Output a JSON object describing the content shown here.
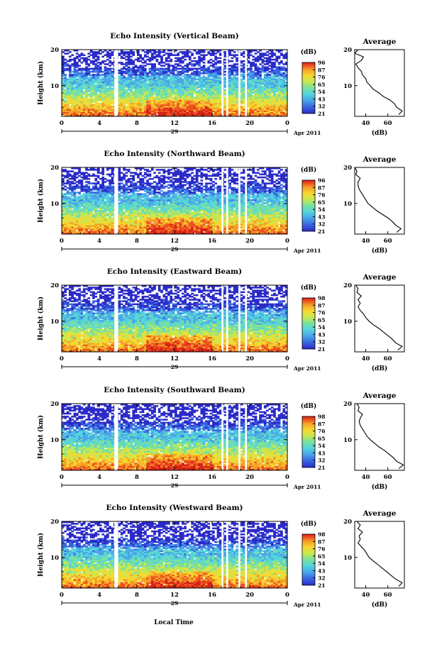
{
  "chart_data": [
    {
      "type": "heatmap",
      "title": "Echo Intensity (Vertical Beam)",
      "ylabel": "Height (km)",
      "x_ticks": [
        "0",
        "4",
        "8",
        "12",
        "16",
        "20",
        "0"
      ],
      "y_ticks": [
        "20",
        "10"
      ],
      "date_label": "29",
      "month_label": "Apr 2011",
      "colorbar_unit": "(dB)",
      "colorbar_ticks": [
        "96",
        "87",
        "76",
        "65",
        "54",
        "43",
        "32",
        "21"
      ],
      "profile": {
        "title": "Average",
        "x_ticks": [
          "40",
          "60"
        ],
        "y_ticks": [
          "20",
          "10"
        ],
        "xlabel": "(dB)",
        "xlim": [
          30,
          75
        ],
        "ylim": [
          1.5,
          20
        ],
        "heights": [
          2,
          3,
          4,
          5,
          6,
          7,
          8,
          9,
          10,
          11,
          12,
          13,
          14,
          15,
          16,
          17,
          18,
          19,
          20
        ],
        "values": [
          70,
          73,
          68,
          66,
          62,
          56,
          52,
          47,
          44,
          41,
          40,
          37,
          36,
          33,
          31,
          36,
          38,
          30,
          33
        ]
      }
    },
    {
      "type": "heatmap",
      "title": "Echo Intensity (Northward Beam)",
      "ylabel": "Height (km)",
      "x_ticks": [
        "0",
        "4",
        "8",
        "12",
        "16",
        "20",
        "0"
      ],
      "y_ticks": [
        "20",
        "10"
      ],
      "date_label": "29",
      "month_label": "Apr 2011",
      "colorbar_unit": "(dB)",
      "colorbar_ticks": [
        "96",
        "87",
        "76",
        "65",
        "54",
        "43",
        "32",
        "21"
      ],
      "profile": {
        "title": "Average",
        "x_ticks": [
          "40",
          "60"
        ],
        "y_ticks": [
          "20",
          "10"
        ],
        "xlabel": "(dB)",
        "xlim": [
          30,
          75
        ],
        "ylim": [
          1.5,
          20
        ],
        "heights": [
          2,
          3,
          4,
          5,
          6,
          7,
          8,
          9,
          10,
          11,
          12,
          13,
          14,
          15,
          16,
          17,
          18,
          19,
          20
        ],
        "values": [
          68,
          72,
          67,
          64,
          60,
          55,
          50,
          46,
          42,
          40,
          38,
          36,
          34,
          33,
          33,
          35,
          31,
          32,
          30
        ]
      }
    },
    {
      "type": "heatmap",
      "title": "Echo Intensity (Eastward Beam)",
      "ylabel": "Height (km)",
      "x_ticks": [
        "0",
        "4",
        "8",
        "12",
        "16",
        "20",
        "0"
      ],
      "y_ticks": [
        "20",
        "10"
      ],
      "date_label": "29",
      "month_label": "Apr 2011",
      "colorbar_unit": "(dB)",
      "colorbar_ticks": [
        "98",
        "87",
        "76",
        "65",
        "54",
        "43",
        "32",
        "21"
      ],
      "profile": {
        "title": "Average",
        "x_ticks": [
          "40",
          "60"
        ],
        "y_ticks": [
          "20",
          "10"
        ],
        "xlabel": "(dB)",
        "xlim": [
          30,
          75
        ],
        "ylim": [
          1.5,
          20
        ],
        "heights": [
          2,
          3,
          4,
          5,
          6,
          7,
          8,
          9,
          10,
          11,
          12,
          13,
          14,
          15,
          16,
          17,
          18,
          19,
          20
        ],
        "values": [
          69,
          73,
          67,
          64,
          60,
          56,
          52,
          47,
          43,
          40,
          38,
          35,
          33,
          35,
          33,
          36,
          32,
          33,
          31
        ]
      }
    },
    {
      "type": "heatmap",
      "title": "Echo Intensity (Southward Beam)",
      "ylabel": "Height (km)",
      "x_ticks": [
        "0",
        "4",
        "8",
        "12",
        "16",
        "20",
        "0"
      ],
      "y_ticks": [
        "20",
        "10"
      ],
      "date_label": "29",
      "month_label": "Apr 2011",
      "colorbar_unit": "(dB)",
      "colorbar_ticks": [
        "98",
        "87",
        "76",
        "65",
        "54",
        "43",
        "32",
        "21"
      ],
      "profile": {
        "title": "Average",
        "x_ticks": [
          "40",
          "60"
        ],
        "y_ticks": [
          "20",
          "10"
        ],
        "xlabel": "(dB)",
        "xlim": [
          30,
          75
        ],
        "ylim": [
          1.5,
          20
        ],
        "heights": [
          2,
          3,
          4,
          5,
          6,
          7,
          8,
          9,
          10,
          11,
          12,
          13,
          14,
          15,
          16,
          17,
          18,
          19,
          20
        ],
        "values": [
          70,
          74,
          68,
          65,
          61,
          57,
          52,
          48,
          44,
          41,
          39,
          37,
          35,
          34,
          35,
          37,
          33,
          34,
          32
        ]
      }
    },
    {
      "type": "heatmap",
      "title": "Echo Intensity (Westward Beam)",
      "ylabel": "Height (km)",
      "x_ticks": [
        "0",
        "4",
        "8",
        "12",
        "16",
        "20",
        "0"
      ],
      "y_ticks": [
        "20",
        "10"
      ],
      "date_label": "29",
      "month_label": "Apr 2011",
      "colorbar_unit": "(dB)",
      "colorbar_ticks": [
        "98",
        "87",
        "76",
        "65",
        "54",
        "43",
        "32",
        "21"
      ],
      "profile": {
        "title": "Average",
        "x_ticks": [
          "40",
          "60"
        ],
        "y_ticks": [
          "20",
          "10"
        ],
        "xlabel": "(dB)",
        "xlim": [
          30,
          75
        ],
        "ylim": [
          1.5,
          20
        ],
        "heights": [
          2,
          3,
          4,
          5,
          6,
          7,
          8,
          9,
          10,
          11,
          12,
          13,
          14,
          15,
          16,
          17,
          18,
          19,
          20
        ],
        "values": [
          70,
          73,
          67,
          63,
          59,
          55,
          51,
          47,
          43,
          41,
          39,
          36,
          33,
          35,
          34,
          37,
          33,
          35,
          32
        ]
      }
    }
  ],
  "xlabel": "Local Time",
  "colorscale": [
    "#2b2bc8",
    "#3a66e0",
    "#4aa6e8",
    "#55d4dc",
    "#78e0a0",
    "#c8e850",
    "#f7d830",
    "#f4a028",
    "#ee5020",
    "#d42018"
  ],
  "gap_hours": [
    [
      5.6,
      6.0
    ],
    [
      17.0,
      17.2
    ],
    [
      17.5,
      17.7
    ],
    [
      18.8,
      19.0
    ],
    [
      19.5,
      19.7
    ]
  ]
}
